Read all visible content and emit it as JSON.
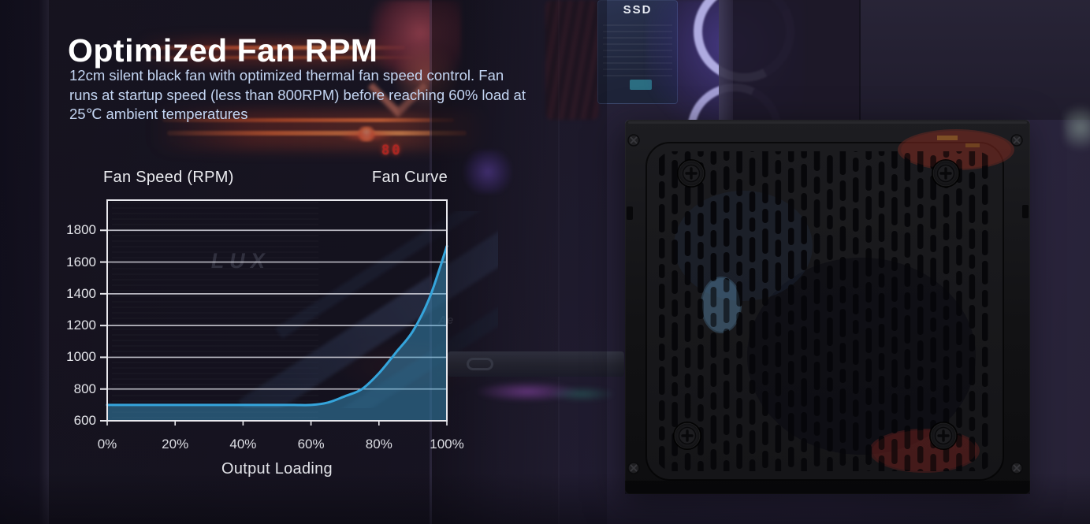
{
  "header": {
    "title": "Optimized Fan RPM",
    "description_lines": [
      "12cm silent black fan with optimized thermal fan speed control. Fan",
      "runs at startup speed (less than 800RPM) before reaching 60% load at",
      "25℃ ambient temperatures"
    ]
  },
  "chart_data": {
    "type": "area",
    "y_axis_title": "Fan Speed (RPM)",
    "legend_label": "Fan Curve",
    "x_axis_title": "Output Loading",
    "x_tick_labels": [
      "0%",
      "20%",
      "40%",
      "60%",
      "80%",
      "100%"
    ],
    "y_tick_values": [
      600,
      800,
      1000,
      1200,
      1400,
      1600,
      1800
    ],
    "xlim": [
      0,
      100
    ],
    "ylim": [
      600,
      1990
    ],
    "grid": true,
    "legend_position": "top-right",
    "series": [
      {
        "name": "Fan Curve",
        "x": [
          0,
          10,
          20,
          30,
          40,
          50,
          55,
          60,
          65,
          70,
          75,
          80,
          85,
          90,
          95,
          100
        ],
        "y": [
          700,
          700,
          700,
          700,
          700,
          700,
          700,
          700,
          715,
          755,
          800,
          900,
          1030,
          1165,
          1380,
          1700
        ]
      }
    ],
    "line_color": "#35a5dc",
    "fill_color": "rgba(62,158,204,0.46)",
    "grid_color": "rgba(214,214,222,0.85)",
    "frame_color": "#e9e9ee"
  },
  "background": {
    "ssd_label": "SSD",
    "led_display_text": "80",
    "psu_watermark": "LUX",
    "small_watermark": "Ae"
  },
  "colors": {
    "title_text": "#ffffff",
    "body_text": "#c4d6f3",
    "accent_line": "#35a5dc"
  }
}
